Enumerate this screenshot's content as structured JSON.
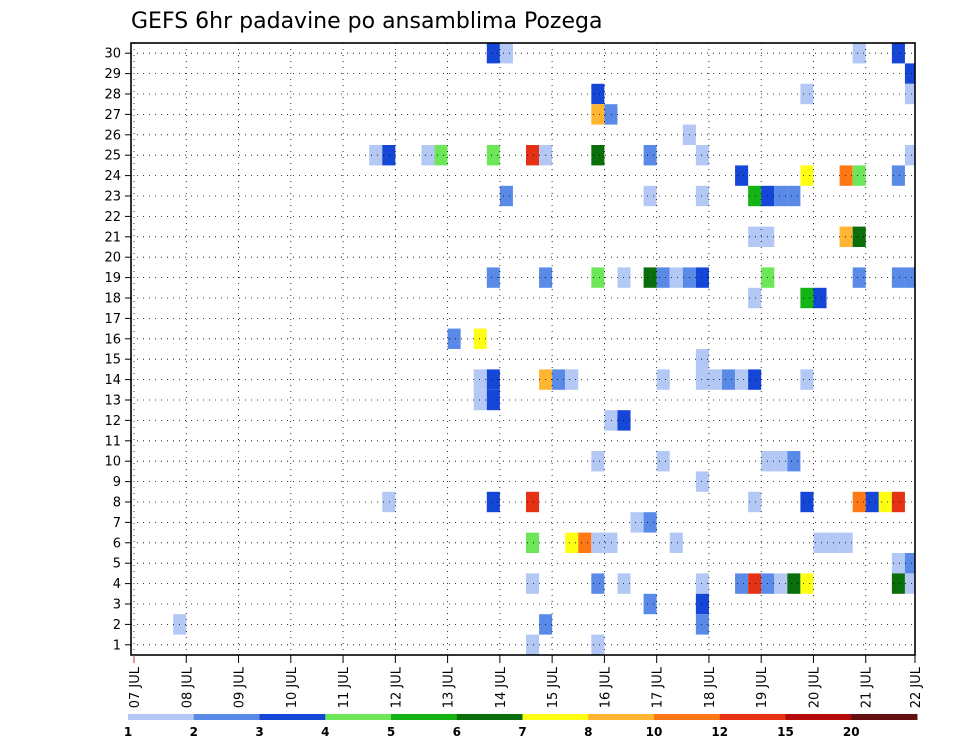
{
  "chart_data": {
    "type": "heatmap",
    "title": "GEFS 6hr padavine po ansamblima Pozega",
    "xlabel": "",
    "ylabel": "",
    "x_ticks": [
      "07 JUL",
      "08 JUL",
      "09 JUL",
      "10 JUL",
      "11 JUL",
      "12 JUL",
      "13 JUL",
      "14 JUL",
      "15 JUL",
      "16 JUL",
      "17 JUL",
      "18 JUL",
      "19 JUL",
      "20 JUL",
      "21 JUL",
      "22 JUL"
    ],
    "y_ticks": [
      "1",
      "2",
      "3",
      "4",
      "5",
      "6",
      "7",
      "8",
      "9",
      "10",
      "11",
      "12",
      "13",
      "14",
      "15",
      "16",
      "17",
      "18",
      "19",
      "20",
      "21",
      "22",
      "23",
      "24",
      "25",
      "26",
      "27",
      "28",
      "29",
      "30"
    ],
    "xlim": [
      "07 JUL 00Z",
      "22 JUL 00Z"
    ],
    "ylim": [
      1,
      30
    ],
    "grid": true,
    "colorbar": {
      "labels": [
        "1",
        "2",
        "3",
        "4",
        "5",
        "6",
        "7",
        "8",
        "10",
        "12",
        "15",
        "20"
      ],
      "colors": [
        "#b4c8f5",
        "#5a8ae8",
        "#1446d7",
        "#6ee65a",
        "#14b414",
        "#0a6e0a",
        "#ffff14",
        "#ffb432",
        "#ff7814",
        "#e63214",
        "#b40a0a",
        "#641010"
      ]
    },
    "cells": [
      {
        "member": 30,
        "time": "13 JUL 18Z",
        "value": 3.1
      },
      {
        "member": 30,
        "time": "14 JUL 00Z",
        "value": 1.5
      },
      {
        "member": 30,
        "time": "20 JUL 18Z",
        "value": 1.5
      },
      {
        "member": 30,
        "time": "21 JUL 12Z",
        "value": 3.5
      },
      {
        "member": 29,
        "time": "21 JUL 18Z",
        "value": 3.5
      },
      {
        "member": 28,
        "time": "15 JUL 18Z",
        "value": 3.5
      },
      {
        "member": 28,
        "time": "19 JUL 18Z",
        "value": 1.5
      },
      {
        "member": 28,
        "time": "21 JUL 18Z",
        "value": 1.5
      },
      {
        "member": 27,
        "time": "15 JUL 18Z",
        "value": 9
      },
      {
        "member": 27,
        "time": "16 JUL 00Z",
        "value": 2.5
      },
      {
        "member": 26,
        "time": "17 JUL 12Z",
        "value": 1.5
      },
      {
        "member": 25,
        "time": "11 JUL 12Z",
        "value": 1.5
      },
      {
        "member": 25,
        "time": "11 JUL 18Z",
        "value": 3.5
      },
      {
        "member": 25,
        "time": "12 JUL 12Z",
        "value": 1.5
      },
      {
        "member": 25,
        "time": "12 JUL 18Z",
        "value": 4.5
      },
      {
        "member": 25,
        "time": "13 JUL 18Z",
        "value": 4.5
      },
      {
        "member": 25,
        "time": "14 JUL 12Z",
        "value": 13
      },
      {
        "member": 25,
        "time": "14 JUL 18Z",
        "value": 1.5
      },
      {
        "member": 25,
        "time": "15 JUL 18Z",
        "value": 6.5
      },
      {
        "member": 25,
        "time": "16 JUL 18Z",
        "value": 2.5
      },
      {
        "member": 25,
        "time": "17 JUL 18Z",
        "value": 1.5
      },
      {
        "member": 25,
        "time": "21 JUL 18Z",
        "value": 1.5
      },
      {
        "member": 24,
        "time": "18 JUL 12Z",
        "value": 3.5
      },
      {
        "member": 24,
        "time": "19 JUL 18Z",
        "value": 7.5
      },
      {
        "member": 24,
        "time": "20 JUL 12Z",
        "value": 11
      },
      {
        "member": 24,
        "time": "20 JUL 18Z",
        "value": 4.5
      },
      {
        "member": 24,
        "time": "21 JUL 12Z",
        "value": 2.5
      },
      {
        "member": 23,
        "time": "14 JUL 00Z",
        "value": 2.5
      },
      {
        "member": 23,
        "time": "16 JUL 18Z",
        "value": 1.5
      },
      {
        "member": 23,
        "time": "17 JUL 18Z",
        "value": 1.5
      },
      {
        "member": 23,
        "time": "18 JUL 18Z",
        "value": 5.5
      },
      {
        "member": 23,
        "time": "19 JUL 00Z",
        "value": 3.5
      },
      {
        "member": 23,
        "time": "19 JUL 06Z",
        "value": 2.5
      },
      {
        "member": 23,
        "time": "19 JUL 12Z",
        "value": 2.5
      },
      {
        "member": 21,
        "time": "18 JUL 18Z",
        "value": 1.5
      },
      {
        "member": 21,
        "time": "19 JUL 00Z",
        "value": 1.5
      },
      {
        "member": 21,
        "time": "20 JUL 12Z",
        "value": 9
      },
      {
        "member": 21,
        "time": "20 JUL 18Z",
        "value": 6.5
      },
      {
        "member": 19,
        "time": "13 JUL 18Z",
        "value": 2.5
      },
      {
        "member": 19,
        "time": "14 JUL 18Z",
        "value": 2.5
      },
      {
        "member": 19,
        "time": "15 JUL 18Z",
        "value": 4.5
      },
      {
        "member": 19,
        "time": "16 JUL 06Z",
        "value": 1.5
      },
      {
        "member": 19,
        "time": "16 JUL 18Z",
        "value": 6.5
      },
      {
        "member": 19,
        "time": "17 JUL 00Z",
        "value": 2.5
      },
      {
        "member": 19,
        "time": "17 JUL 06Z",
        "value": 1.5
      },
      {
        "member": 19,
        "time": "17 JUL 12Z",
        "value": 2.5
      },
      {
        "member": 19,
        "time": "17 JUL 18Z",
        "value": 3.5
      },
      {
        "member": 19,
        "time": "19 JUL 00Z",
        "value": 4.5
      },
      {
        "member": 19,
        "time": "20 JUL 18Z",
        "value": 2.5
      },
      {
        "member": 19,
        "time": "21 JUL 12Z",
        "value": 2.5
      },
      {
        "member": 19,
        "time": "21 JUL 18Z",
        "value": 2.5
      },
      {
        "member": 18,
        "time": "18 JUL 18Z",
        "value": 1.5
      },
      {
        "member": 18,
        "time": "19 JUL 18Z",
        "value": 5.5
      },
      {
        "member": 18,
        "time": "20 JUL 00Z",
        "value": 3.5
      },
      {
        "member": 16,
        "time": "13 JUL 00Z",
        "value": 2.5
      },
      {
        "member": 16,
        "time": "13 JUL 12Z",
        "value": 7.5
      },
      {
        "member": 15,
        "time": "17 JUL 18Z",
        "value": 1.5
      },
      {
        "member": 14,
        "time": "13 JUL 12Z",
        "value": 1.5
      },
      {
        "member": 14,
        "time": "13 JUL 18Z",
        "value": 3.5
      },
      {
        "member": 14,
        "time": "14 JUL 18Z",
        "value": 9
      },
      {
        "member": 14,
        "time": "15 JUL 00Z",
        "value": 2.5
      },
      {
        "member": 14,
        "time": "15 JUL 06Z",
        "value": 1.5
      },
      {
        "member": 14,
        "time": "17 JUL 00Z",
        "value": 1.5
      },
      {
        "member": 14,
        "time": "17 JUL 18Z",
        "value": 1.5
      },
      {
        "member": 14,
        "time": "18 JUL 00Z",
        "value": 1.5
      },
      {
        "member": 14,
        "time": "18 JUL 06Z",
        "value": 2.5
      },
      {
        "member": 14,
        "time": "18 JUL 12Z",
        "value": 1.5
      },
      {
        "member": 14,
        "time": "18 JUL 18Z",
        "value": 3.5
      },
      {
        "member": 14,
        "time": "19 JUL 18Z",
        "value": 1.5
      },
      {
        "member": 13,
        "time": "13 JUL 12Z",
        "value": 1.5
      },
      {
        "member": 13,
        "time": "13 JUL 18Z",
        "value": 3.5
      },
      {
        "member": 12,
        "time": "16 JUL 00Z",
        "value": 1.5
      },
      {
        "member": 12,
        "time": "16 JUL 06Z",
        "value": 3.5
      },
      {
        "member": 10,
        "time": "15 JUL 18Z",
        "value": 1.5
      },
      {
        "member": 10,
        "time": "17 JUL 00Z",
        "value": 1.5
      },
      {
        "member": 10,
        "time": "19 JUL 00Z",
        "value": 1.5
      },
      {
        "member": 10,
        "time": "19 JUL 06Z",
        "value": 1.5
      },
      {
        "member": 10,
        "time": "19 JUL 12Z",
        "value": 2.5
      },
      {
        "member": 9,
        "time": "17 JUL 18Z",
        "value": 1.5
      },
      {
        "member": 8,
        "time": "11 JUL 18Z",
        "value": 1.5
      },
      {
        "member": 8,
        "time": "13 JUL 18Z",
        "value": 3.5
      },
      {
        "member": 8,
        "time": "14 JUL 12Z",
        "value": 13
      },
      {
        "member": 8,
        "time": "18 JUL 18Z",
        "value": 1.5
      },
      {
        "member": 8,
        "time": "19 JUL 18Z",
        "value": 3.5
      },
      {
        "member": 8,
        "time": "20 JUL 18Z",
        "value": 11
      },
      {
        "member": 8,
        "time": "21 JUL 00Z",
        "value": 3.5
      },
      {
        "member": 8,
        "time": "21 JUL 06Z",
        "value": 7.5
      },
      {
        "member": 8,
        "time": "21 JUL 12Z",
        "value": 13
      },
      {
        "member": 7,
        "time": "16 JUL 12Z",
        "value": 1.5
      },
      {
        "member": 7,
        "time": "16 JUL 18Z",
        "value": 2.5
      },
      {
        "member": 6,
        "time": "14 JUL 12Z",
        "value": 4.5
      },
      {
        "member": 6,
        "time": "15 JUL 06Z",
        "value": 7.5
      },
      {
        "member": 6,
        "time": "15 JUL 12Z",
        "value": 11
      },
      {
        "member": 6,
        "time": "15 JUL 18Z",
        "value": 1.5
      },
      {
        "member": 6,
        "time": "16 JUL 00Z",
        "value": 1.5
      },
      {
        "member": 6,
        "time": "17 JUL 06Z",
        "value": 1.5
      },
      {
        "member": 6,
        "time": "20 JUL 00Z",
        "value": 1.5
      },
      {
        "member": 6,
        "time": "20 JUL 06Z",
        "value": 1.5
      },
      {
        "member": 6,
        "time": "20 JUL 12Z",
        "value": 1.5
      },
      {
        "member": 5,
        "time": "21 JUL 12Z",
        "value": 1.5
      },
      {
        "member": 5,
        "time": "21 JUL 18Z",
        "value": 2.5
      },
      {
        "member": 4,
        "time": "14 JUL 12Z",
        "value": 1.5
      },
      {
        "member": 4,
        "time": "15 JUL 18Z",
        "value": 2.5
      },
      {
        "member": 4,
        "time": "16 JUL 06Z",
        "value": 1.5
      },
      {
        "member": 4,
        "time": "17 JUL 18Z",
        "value": 1.5
      },
      {
        "member": 4,
        "time": "18 JUL 12Z",
        "value": 2.5
      },
      {
        "member": 4,
        "time": "18 JUL 18Z",
        "value": 13
      },
      {
        "member": 4,
        "time": "19 JUL 00Z",
        "value": 2.5
      },
      {
        "member": 4,
        "time": "19 JUL 06Z",
        "value": 1.5
      },
      {
        "member": 4,
        "time": "19 JUL 12Z",
        "value": 6.5
      },
      {
        "member": 4,
        "time": "19 JUL 18Z",
        "value": 7.5
      },
      {
        "member": 4,
        "time": "21 JUL 12Z",
        "value": 6.5
      },
      {
        "member": 4,
        "time": "21 JUL 18Z",
        "value": 1.5
      },
      {
        "member": 3,
        "time": "16 JUL 18Z",
        "value": 2.5
      },
      {
        "member": 3,
        "time": "17 JUL 18Z",
        "value": 3.5
      },
      {
        "member": 2,
        "time": "07 JUL 18Z",
        "value": 1.5
      },
      {
        "member": 2,
        "time": "14 JUL 18Z",
        "value": 2.5
      },
      {
        "member": 2,
        "time": "17 JUL 18Z",
        "value": 2.5
      },
      {
        "member": 1,
        "time": "14 JUL 12Z",
        "value": 1.5
      },
      {
        "member": 1,
        "time": "15 JUL 18Z",
        "value": 1.5
      }
    ]
  }
}
